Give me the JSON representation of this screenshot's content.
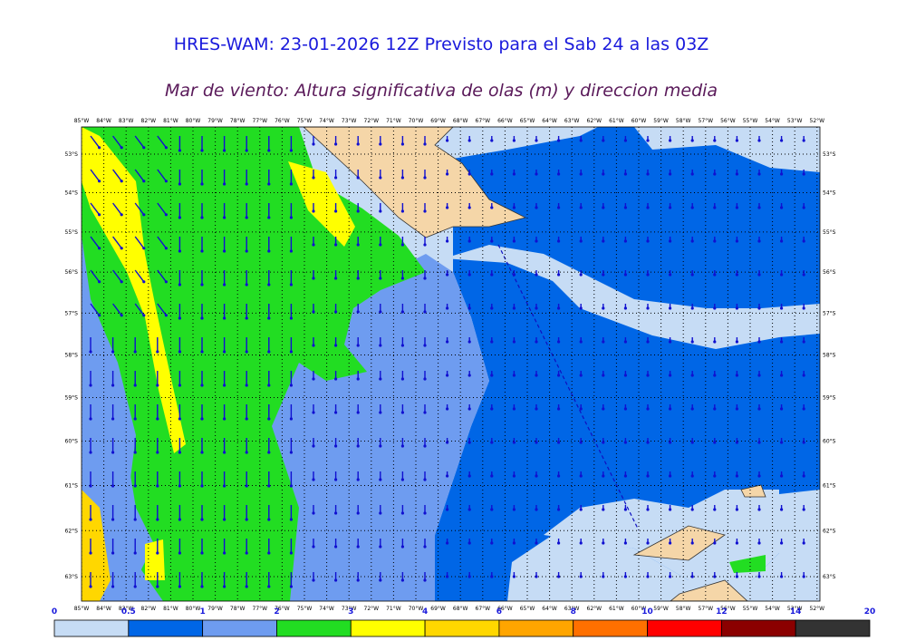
{
  "header": {
    "title": "HRES-WAM: 23-01-2026 12Z Previsto para el Sab 24 a las 03Z",
    "subtitle": "Mar de viento: Altura significativa de olas (m) y direccion media"
  },
  "map": {
    "longitudes": [
      "85°W",
      "84°W",
      "83°W",
      "82°W",
      "81°W",
      "80°W",
      "79°W",
      "78°W",
      "77°W",
      "76°W",
      "75°W",
      "74°W",
      "73°W",
      "72°W",
      "71°W",
      "70°W",
      "69°W",
      "68°W",
      "67°W",
      "66°W",
      "65°W",
      "64°W",
      "63°W",
      "62°W",
      "61°W",
      "60°W",
      "59°W",
      "58°W",
      "57°W",
      "56°W",
      "55°W",
      "54°W",
      "53°W",
      "52°W"
    ],
    "latitudes": [
      "53°S",
      "54°S",
      "55°S",
      "56°S",
      "57°S",
      "58°S",
      "59°S",
      "60°S",
      "61°S",
      "62°S",
      "63°S"
    ]
  },
  "colorbar": {
    "ticks": [
      0,
      0.5,
      1,
      2,
      3,
      4,
      6,
      8,
      10,
      12,
      14,
      20
    ],
    "colors": [
      "#c6dcf5",
      "#0066e6",
      "#6e9cf0",
      "#22dd22",
      "#ffff00",
      "#ffd700",
      "#ffa500",
      "#ff7000",
      "#ff0000",
      "#8b0000",
      "#333333"
    ]
  }
}
